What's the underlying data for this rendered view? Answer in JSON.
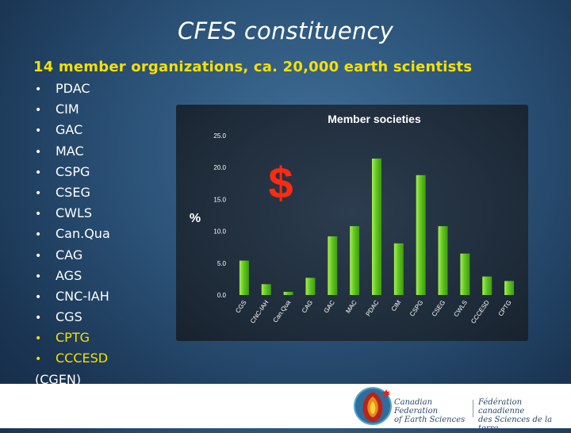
{
  "slide": {
    "title": "CFES constituency",
    "subtitle": "14 member organizations, ca. 20,000 earth scientists",
    "bullet_char": "•",
    "members": [
      "PDAC",
      "CIM",
      "GAC",
      "MAC",
      "CSPG",
      "CSEG",
      "CWLS",
      "Can.Qua",
      "CAG",
      "AGS",
      "CNC-IAH",
      "CGS",
      "CPTG",
      "CCCESD"
    ],
    "footnote": "(CGEN)"
  },
  "chart_data": {
    "type": "bar",
    "title": "Member societies",
    "ylabel": "%",
    "annotation": "$",
    "categories": [
      "CGS",
      "CNC-IAH",
      "Can.Qua",
      "CAG",
      "GAC",
      "MAC",
      "PDAC",
      "CIM",
      "CSPG",
      "CSEG",
      "CWLS",
      "CCCESD",
      "CPTG"
    ],
    "values": [
      5.4,
      1.7,
      0.5,
      2.7,
      9.2,
      10.8,
      21.4,
      8.1,
      18.8,
      10.8,
      6.5,
      2.9,
      2.2
    ],
    "ylim": [
      0,
      25
    ],
    "yticks": [
      0.0,
      5.0,
      10.0,
      15.0,
      20.0,
      25.0
    ],
    "grid": false,
    "colors": {
      "bar": "#62c81e",
      "bar_highlight": "#a6ee5a",
      "annotation": "#ff2b10"
    }
  },
  "footer": {
    "org_en_line1": "Canadian Federation",
    "org_en_line2": "of Earth Sciences",
    "org_fr_line1": "Fédération canadienne",
    "org_fr_line2": "des Sciences de la terre"
  }
}
